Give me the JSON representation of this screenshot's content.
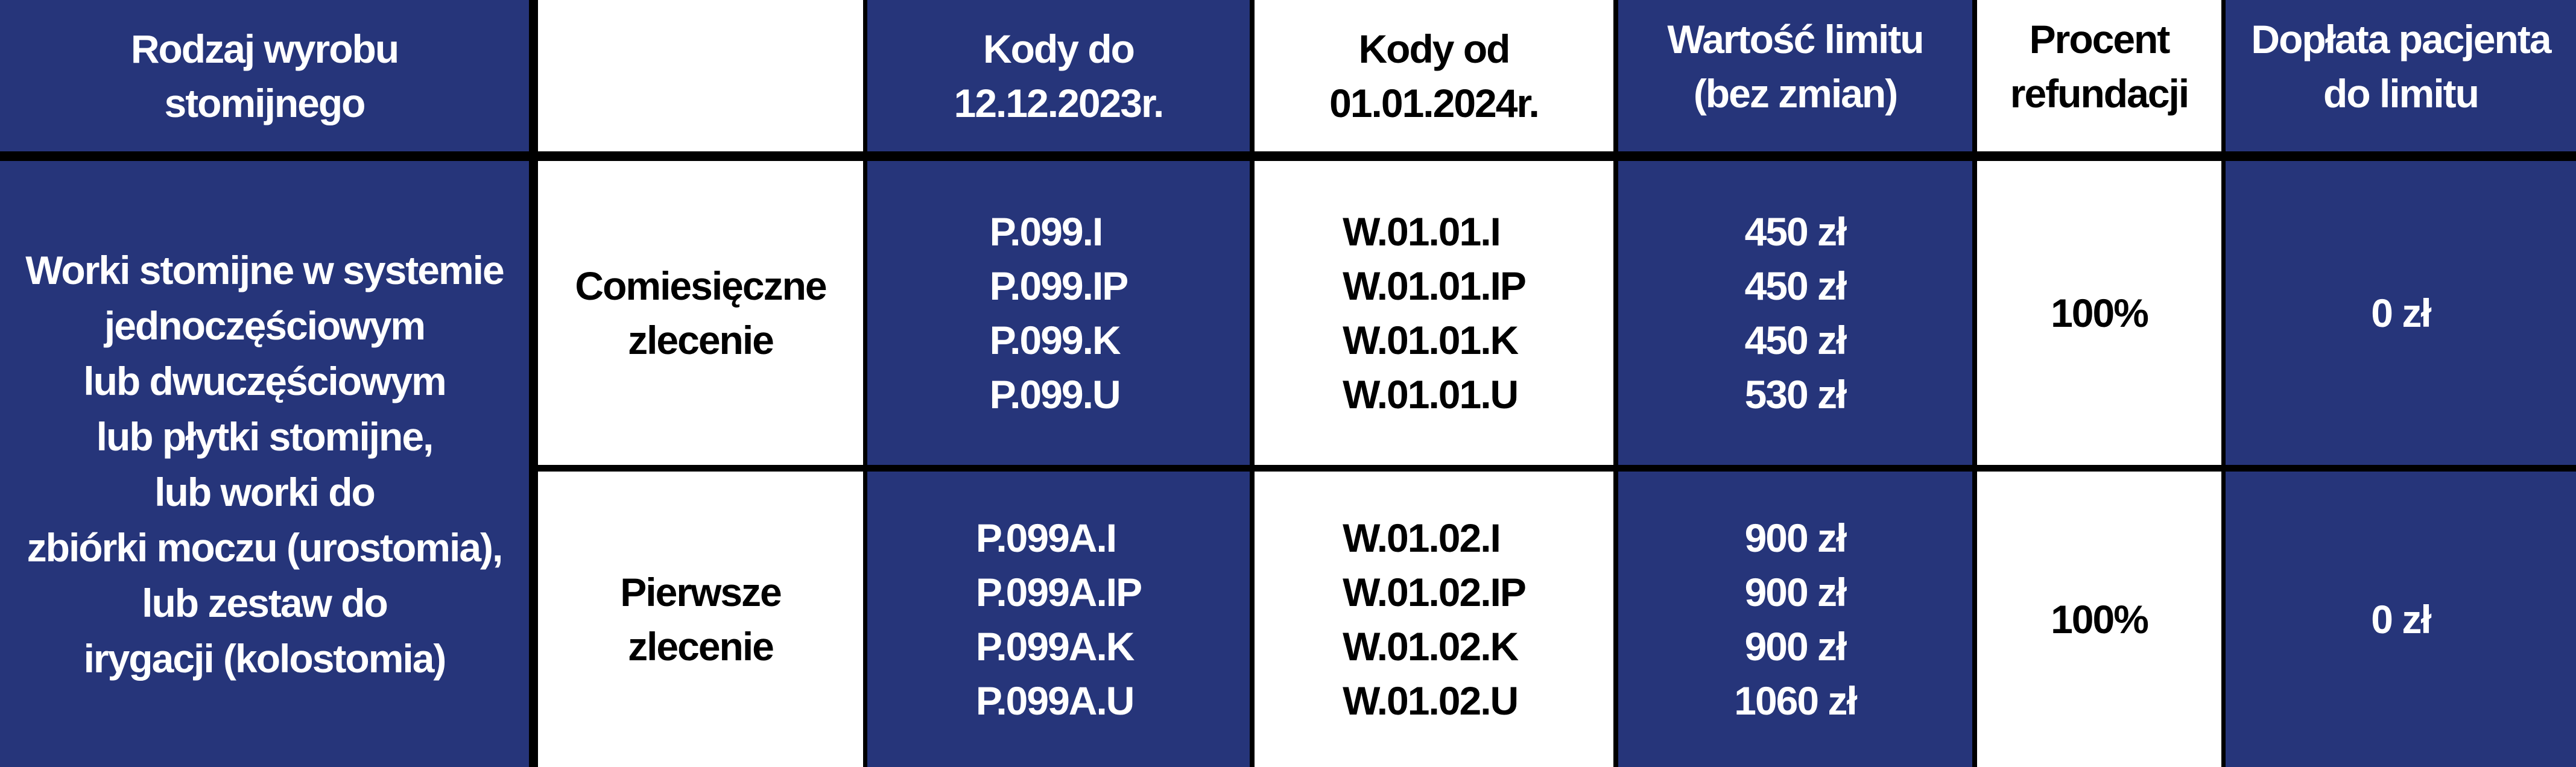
{
  "header": {
    "product_type": [
      "Rodzaj wyrobu",
      "stomijnego"
    ],
    "order_type": "",
    "codes_until": [
      "Kody do",
      "12.12.2023r."
    ],
    "codes_from": [
      "Kody od",
      "01.01.2024r."
    ],
    "limit_value": [
      "Wartość limitu",
      "(bez zmian)"
    ],
    "refund_percent": [
      "Procent",
      "refundacji"
    ],
    "patient_copay": [
      "Dopłata pacjenta",
      "do limitu"
    ]
  },
  "product_description": [
    "Worki stomijne w systemie",
    "jednoczęściowym",
    "lub dwuczęściowym",
    "lub płytki stomijne,",
    "lub worki do",
    "zbiórki moczu (urostomia),",
    "lub zestaw do",
    "irygacji (kolostomia)"
  ],
  "rows": [
    {
      "order_type": [
        "Comiesięczne",
        "zlecenie"
      ],
      "codes_until": [
        "P.099.I",
        "P.099.IP",
        "P.099.K",
        "P.099.U"
      ],
      "codes_from": [
        "W.01.01.I",
        "W.01.01.IP",
        "W.01.01.K",
        "W.01.01.U"
      ],
      "limits": [
        "450 zł",
        "450 zł",
        "450 zł",
        "530 zł"
      ],
      "refund_percent": "100%",
      "patient_copay": "0 zł"
    },
    {
      "order_type": [
        "Pierwsze",
        "zlecenie"
      ],
      "codes_until": [
        "P.099A.I",
        "P.099A.IP",
        "P.099A.K",
        "P.099A.U"
      ],
      "codes_from": [
        "W.01.02.I",
        "W.01.02.IP",
        "W.01.02.K",
        "W.01.02.U"
      ],
      "limits": [
        "900 zł",
        "900 zł",
        "900 zł",
        "1060 zł"
      ],
      "refund_percent": "100%",
      "patient_copay": "0 zł"
    }
  ],
  "colors": {
    "navy": "#26357a",
    "border": "#000000",
    "white": "#ffffff"
  }
}
